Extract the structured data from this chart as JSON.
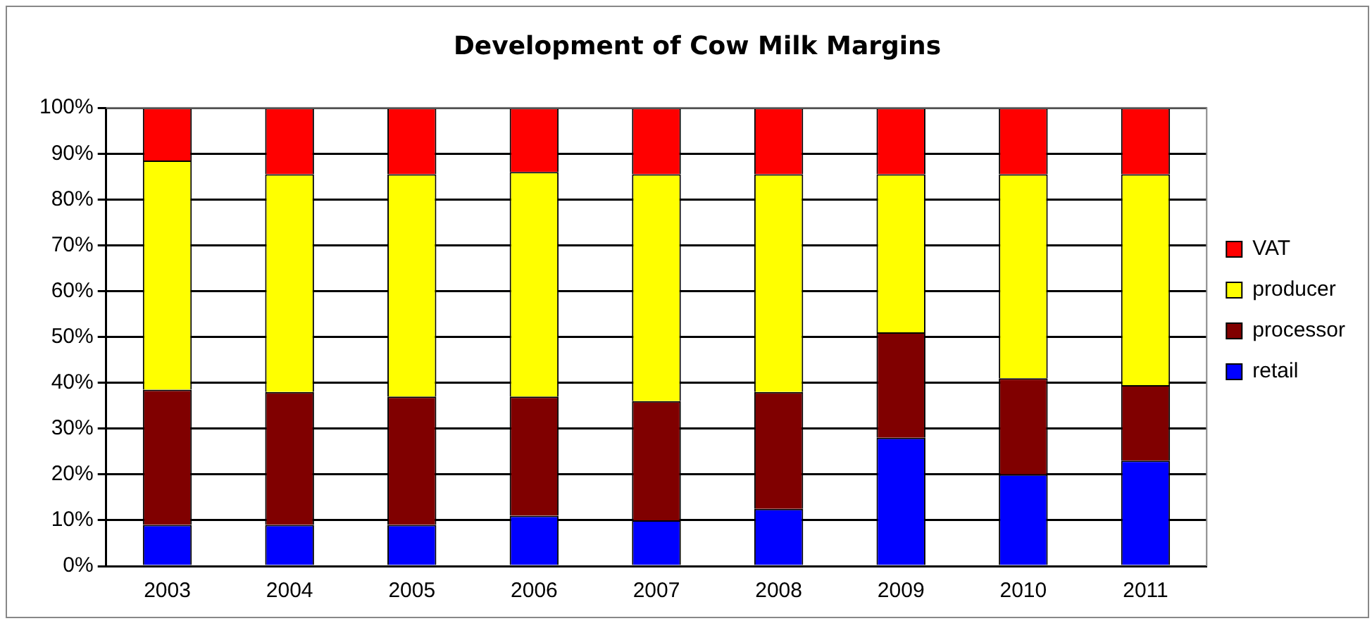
{
  "chart_data": {
    "type": "bar",
    "title": "Development of Cow Milk Margins",
    "stacked": true,
    "categories": [
      "2003",
      "2004",
      "2005",
      "2006",
      "2007",
      "2008",
      "2009",
      "2010",
      "2011"
    ],
    "series": [
      {
        "name": "retail",
        "color": "#0000ff",
        "values": [
          9,
          9,
          9,
          11,
          10,
          12.5,
          28,
          20,
          23
        ]
      },
      {
        "name": "processor",
        "color": "#800000",
        "values": [
          29.5,
          29,
          28,
          26,
          26,
          25.5,
          23,
          21,
          16.5
        ]
      },
      {
        "name": "producer",
        "color": "#ffff00",
        "values": [
          50,
          47.5,
          48.5,
          49,
          49.5,
          47.5,
          34.5,
          44.5,
          46
        ]
      },
      {
        "name": "VAT",
        "color": "#ff0000",
        "values": [
          11.5,
          14.5,
          14.5,
          14,
          14.5,
          14.5,
          14.5,
          14.5,
          14.5
        ]
      }
    ],
    "ylim": [
      0,
      100
    ],
    "yticks": [
      {
        "value": 0,
        "label": "0%"
      },
      {
        "value": 10,
        "label": "10%"
      },
      {
        "value": 20,
        "label": "20%"
      },
      {
        "value": 30,
        "label": "30%"
      },
      {
        "value": 40,
        "label": "40%"
      },
      {
        "value": 50,
        "label": "50%"
      },
      {
        "value": 60,
        "label": "60%"
      },
      {
        "value": 70,
        "label": "70%"
      },
      {
        "value": 80,
        "label": "80%"
      },
      {
        "value": 90,
        "label": "90%"
      },
      {
        "value": 100,
        "label": "100%"
      }
    ],
    "grid": "y",
    "legend": "right"
  }
}
